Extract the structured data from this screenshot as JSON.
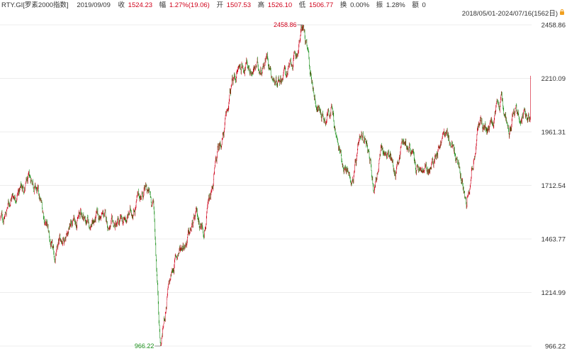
{
  "header": {
    "ticker": "RTY.GI[罗素2000指数]",
    "date": "2019/09/09",
    "close_label": "收",
    "close_value": "1524.23",
    "change_label": "幅",
    "change_value": "1.27%(19.06)",
    "open_label": "开",
    "open_value": "1507.53",
    "high_label": "高",
    "high_value": "1526.10",
    "low_label": "低",
    "low_value": "1506.77",
    "turnover_label": "换",
    "turnover_value": "0.00%",
    "amplitude_label": "振",
    "amplitude_value": "1.28%",
    "amount_label": "额",
    "amount_value": "0",
    "range": "2018/05/01-2024/07/16(1562日)",
    "lock_icon": "lock-icon"
  },
  "colors": {
    "up": "#d0021b",
    "down": "#1a8f1a",
    "grid": "#ececec",
    "text": "#333333"
  },
  "chart_data": {
    "type": "candlestick",
    "x_range": [
      "2018/05/01",
      "2024/07/16"
    ],
    "trading_days": 1562,
    "ylim": [
      966.22,
      2458.86
    ],
    "y_ticks": [
      "2458.86",
      "2210.09",
      "1961.31",
      "1712.54",
      "1463.77",
      "1214.99",
      "966.22"
    ],
    "annotations": [
      {
        "label": "2458.86",
        "kind": "max",
        "date": "2021/11",
        "value": 2458.86
      },
      {
        "label": "966.22",
        "kind": "min",
        "date": "2020/03",
        "value": 966.22
      }
    ],
    "close_path": [
      [
        "2018/05",
        1560
      ],
      [
        "2018/06",
        1660
      ],
      [
        "2018/07",
        1690
      ],
      [
        "2018/08",
        1710
      ],
      [
        "2018/09",
        1740
      ],
      [
        "2018/10",
        1640
      ],
      [
        "2018/11",
        1520
      ],
      [
        "2018/12",
        1360
      ],
      [
        "2019/01",
        1460
      ],
      [
        "2019/02",
        1520
      ],
      [
        "2019/03",
        1560
      ],
      [
        "2019/04",
        1580
      ],
      [
        "2019/05",
        1530
      ],
      [
        "2019/06",
        1560
      ],
      [
        "2019/07",
        1570
      ],
      [
        "2019/08",
        1510
      ],
      [
        "2019/09",
        1524
      ],
      [
        "2019/10",
        1540
      ],
      [
        "2019/11",
        1600
      ],
      [
        "2019/12",
        1660
      ],
      [
        "2020/01",
        1690
      ],
      [
        "2020/02",
        1620
      ],
      [
        "2020/03",
        966
      ],
      [
        "2020/04",
        1210
      ],
      [
        "2020/05",
        1360
      ],
      [
        "2020/06",
        1440
      ],
      [
        "2020/07",
        1480
      ],
      [
        "2020/08",
        1560
      ],
      [
        "2020/09",
        1520
      ],
      [
        "2020/10",
        1640
      ],
      [
        "2020/11",
        1860
      ],
      [
        "2020/12",
        1980
      ],
      [
        "2021/01",
        2180
      ],
      [
        "2021/02",
        2260
      ],
      [
        "2021/03",
        2280
      ],
      [
        "2021/04",
        2250
      ],
      [
        "2021/05",
        2260
      ],
      [
        "2021/06",
        2320
      ],
      [
        "2021/07",
        2200
      ],
      [
        "2021/08",
        2230
      ],
      [
        "2021/09",
        2250
      ],
      [
        "2021/10",
        2300
      ],
      [
        "2021/11",
        2458
      ],
      [
        "2021/12",
        2240
      ],
      [
        "2022/01",
        2080
      ],
      [
        "2022/02",
        2030
      ],
      [
        "2022/03",
        2090
      ],
      [
        "2022/04",
        1880
      ],
      [
        "2022/05",
        1800
      ],
      [
        "2022/06",
        1740
      ],
      [
        "2022/07",
        1880
      ],
      [
        "2022/08",
        1940
      ],
      [
        "2022/09",
        1700
      ],
      [
        "2022/10",
        1860
      ],
      [
        "2022/11",
        1870
      ],
      [
        "2022/12",
        1770
      ],
      [
        "2023/01",
        1930
      ],
      [
        "2023/02",
        1890
      ],
      [
        "2023/03",
        1780
      ],
      [
        "2023/04",
        1770
      ],
      [
        "2023/05",
        1780
      ],
      [
        "2023/06",
        1890
      ],
      [
        "2023/07",
        1960
      ],
      [
        "2023/08",
        1900
      ],
      [
        "2023/09",
        1780
      ],
      [
        "2023/10",
        1660
      ],
      [
        "2023/11",
        1840
      ],
      [
        "2023/12",
        2020
      ],
      [
        "2024/01",
        1950
      ],
      [
        "2024/02",
        2030
      ],
      [
        "2024/03",
        2090
      ],
      [
        "2024/04",
        1990
      ],
      [
        "2024/05",
        2070
      ],
      [
        "2024/06",
        2030
      ],
      [
        "2024/07/15",
        2060
      ],
      [
        "2024/07/16",
        2240
      ]
    ]
  }
}
